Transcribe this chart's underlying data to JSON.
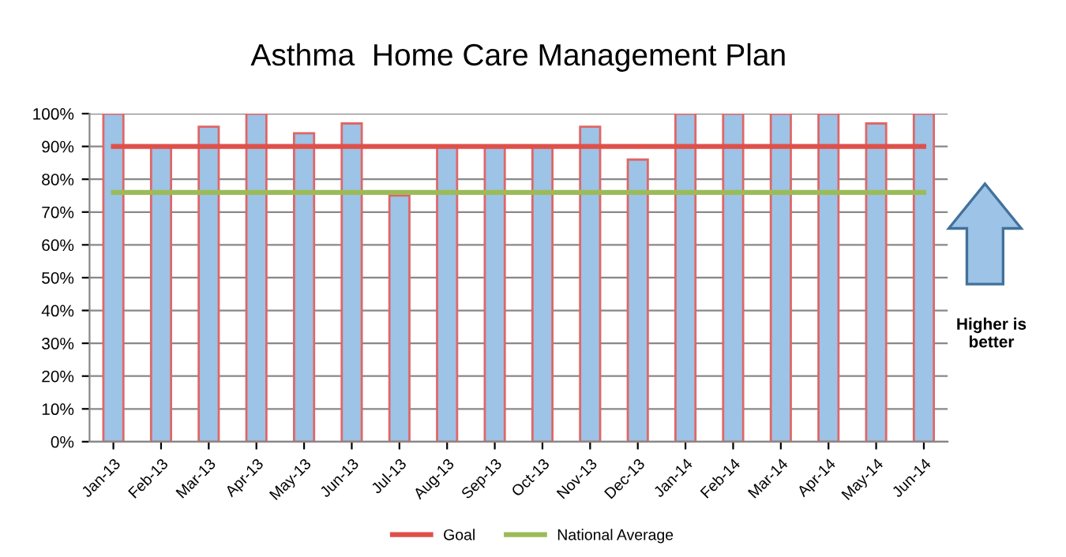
{
  "chart_data": {
    "type": "bar",
    "title": "Asthma  Home Care Management Plan",
    "categories": [
      "Jan-13",
      "Feb-13",
      "Mar-13",
      "Apr-13",
      "May-13",
      "Jun-13",
      "Jul-13",
      "Aug-13",
      "Sep-13",
      "Oct-13",
      "Nov-13",
      "Dec-13",
      "Jan-14",
      "Feb-14",
      "Mar-14",
      "Apr-14",
      "May-14",
      "Jun-14"
    ],
    "series": [
      {
        "color": "#9dc3e6",
        "values": [
          100,
          90,
          96,
          100,
          94,
          97,
          75,
          90,
          90,
          90,
          96,
          86,
          100,
          100,
          100,
          100,
          97,
          100
        ]
      },
      {
        "type": "line",
        "name": "Goal",
        "color": "#e0504a",
        "values": [
          90,
          90,
          90,
          90,
          90,
          90,
          90,
          90,
          90,
          90,
          90,
          90,
          90,
          90,
          90,
          90,
          90,
          90
        ]
      },
      {
        "type": "line",
        "name": "National Average",
        "color": "#9bbb59",
        "values": [
          76,
          76,
          76,
          76,
          76,
          76,
          76,
          76,
          76,
          76,
          76,
          76,
          76,
          76,
          76,
          76,
          76,
          76
        ]
      }
    ],
    "ylim": [
      0,
      100
    ],
    "yticks": [
      {
        "value": 0,
        "label": "0%"
      },
      {
        "value": 10,
        "label": "10%"
      },
      {
        "value": 20,
        "label": "20%"
      },
      {
        "value": 30,
        "label": "30%"
      },
      {
        "value": 40,
        "label": "40%"
      },
      {
        "value": 50,
        "label": "50%"
      },
      {
        "value": 60,
        "label": "60%"
      },
      {
        "value": 70,
        "label": "70%"
      },
      {
        "value": 80,
        "label": "80%"
      },
      {
        "value": 90,
        "label": "90%"
      },
      {
        "value": 100,
        "label": "100%"
      }
    ],
    "grid": "y",
    "legend": "bottom",
    "marker": "none",
    "line_style": "solid",
    "annotations": [
      "Higher is\nbetter"
    ]
  }
}
